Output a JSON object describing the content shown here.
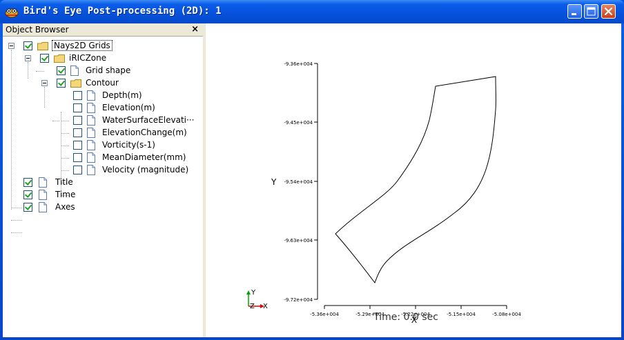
{
  "window": {
    "title": "Bird's Eye Post-processing (2D): 1",
    "icon": "app-icon"
  },
  "object_browser": {
    "title": "Object Browser",
    "close_glyph": "×",
    "tree": {
      "root": {
        "label": "Nays2D Grids",
        "checked": true
      },
      "zone": {
        "label": "iRICZone",
        "checked": true
      },
      "grid_shape": {
        "label": "Grid shape",
        "checked": true
      },
      "contour": {
        "label": "Contour",
        "checked": true
      },
      "contour_items": [
        {
          "label": "Depth(m)",
          "checked": false
        },
        {
          "label": "Elevation(m)",
          "checked": false
        },
        {
          "label": "WaterSurfaceElevati···",
          "checked": false
        },
        {
          "label": "ElevationChange(m)",
          "checked": false
        },
        {
          "label": "Vorticity(s-1)",
          "checked": false
        },
        {
          "label": "MeanDiameter(mm)",
          "checked": false
        },
        {
          "label": "Velocity (magnitude)",
          "checked": false
        }
      ],
      "bottom_items": [
        {
          "label": "Title",
          "checked": true
        },
        {
          "label": "Time",
          "checked": true
        },
        {
          "label": "Axes",
          "checked": true
        }
      ]
    }
  },
  "plot": {
    "y_axis_label": "Y",
    "x_axis_label": "X",
    "time_text": "Time: 0.0 sec",
    "y_ticks": [
      "-9.36e+004",
      "-9.45e+004",
      "-9.54e+004",
      "-9.63e+004",
      "-9.72e+004"
    ],
    "x_ticks": [
      "-5.36e+004",
      "-5.29e+004",
      "-5.22e+004",
      "-5.15e+004",
      "-5.08e+004"
    ],
    "orientation": {
      "y": "Y",
      "z": "Z",
      "x": "X"
    },
    "colors": {
      "axis_y": "#00a000",
      "axis_x": "#e00000"
    }
  }
}
